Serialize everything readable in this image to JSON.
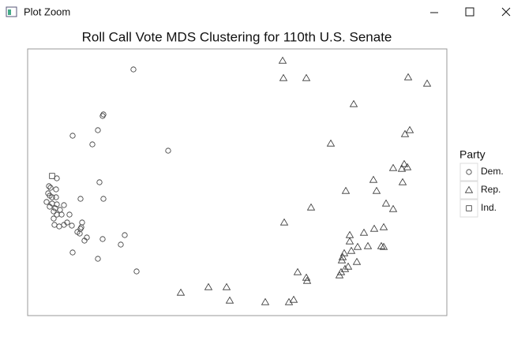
{
  "window_title": "Plot Zoom",
  "chart_data": {
    "type": "scatter",
    "title": "Roll Call Vote MDS Clustering for 110th U.S. Senate",
    "legend_title": "Party",
    "legend_position": "right",
    "xlim": [
      0,
      531
    ],
    "ylim": [
      0,
      338
    ],
    "series": [
      {
        "name": "Dem.",
        "shape": "circle",
        "color": "#333333",
        "x": [
          134,
          96,
          95,
          89,
          57,
          82,
          178,
          91,
          27,
          37,
          29,
          36,
          26,
          28,
          31,
          36,
          24,
          67,
          96,
          37,
          46,
          28,
          35,
          33,
          37,
          43,
          53,
          69,
          34,
          50,
          40,
          56,
          67,
          63,
          68,
          75,
          72,
          95,
          123,
          118,
          57,
          89,
          138,
          31,
          41,
          33,
          66,
          46
        ],
        "values": [
          312,
          255,
          253,
          235,
          228,
          217,
          209,
          169,
          164,
          174,
          162,
          160,
          155,
          152,
          150,
          150,
          144,
          148,
          148,
          141,
          140,
          138,
          136,
          132,
          128,
          128,
          128,
          118,
          115,
          118,
          113,
          114,
          110,
          106,
          112,
          99,
          95,
          97,
          102,
          90,
          80,
          72,
          56,
          142,
          134,
          123,
          104,
          115
        ]
      },
      {
        "name": "Rep.",
        "shape": "triangle",
        "color": "#333333",
        "x": [
          323,
          324,
          353,
          482,
          506,
          413,
          484,
          478,
          384,
          463,
          477,
          481,
          474,
          438,
          475,
          403,
          442,
          454,
          463,
          359,
          325,
          439,
          451,
          426,
          408,
          408,
          431,
          418,
          448,
          451,
          410,
          401,
          399,
          398,
          417,
          402,
          397,
          395,
          342,
          353,
          354,
          229,
          252,
          194,
          256,
          301,
          331,
          337,
          406
        ],
        "values": [
          323,
          301,
          301,
          302,
          294,
          268,
          235,
          230,
          218,
          187,
          192,
          188,
          186,
          172,
          169,
          158,
          158,
          142,
          135,
          137,
          118,
          110,
          112,
          105,
          102,
          94,
          88,
          87,
          88,
          87,
          82,
          79,
          74,
          70,
          68,
          59,
          55,
          51,
          55,
          48,
          44,
          36,
          36,
          29,
          19,
          17,
          17,
          20,
          62
        ]
      },
      {
        "name": "Ind.",
        "shape": "square",
        "color": "#333333",
        "x": [
          31
        ],
        "values": [
          177
        ]
      }
    ]
  }
}
